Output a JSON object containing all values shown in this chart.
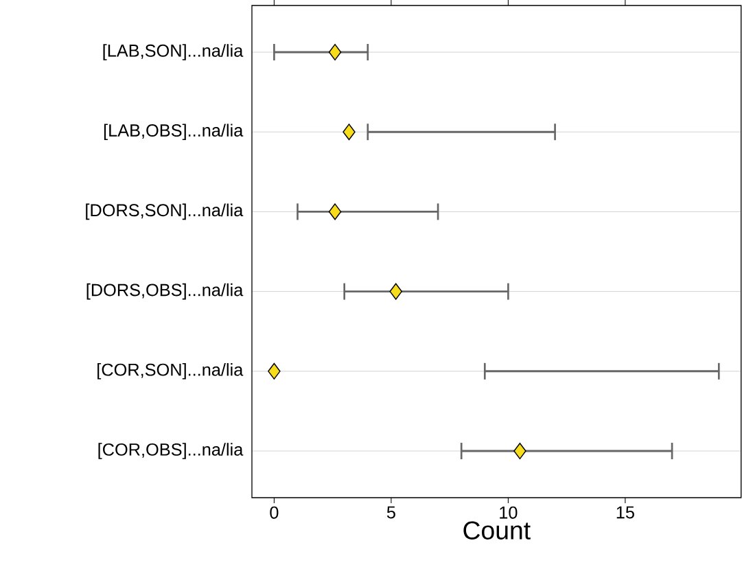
{
  "chart_data": {
    "type": "scatter",
    "orientation": "horizontal",
    "xlabel": "Count",
    "categories": [
      "[LAB,SON]...na/lia",
      "[LAB,OBS]...na/lia",
      "[DORS,SON]...na/lia",
      "[DORS,OBS]...na/lia",
      "[COR,SON]...na/lia",
      "[COR,OBS]...na/lia"
    ],
    "values": [
      2.6,
      3.2,
      2.6,
      5.2,
      0,
      10.5
    ],
    "errors": [
      [
        0,
        4
      ],
      [
        4,
        12
      ],
      [
        1,
        7
      ],
      [
        3,
        10
      ],
      [
        9,
        19
      ],
      [
        8,
        17
      ]
    ],
    "color": "#f7dc1c",
    "marker": "diamond",
    "grid": "y",
    "xlim": [
      -0.95,
      19.95
    ],
    "xticks": [
      0,
      5,
      10,
      15
    ]
  }
}
